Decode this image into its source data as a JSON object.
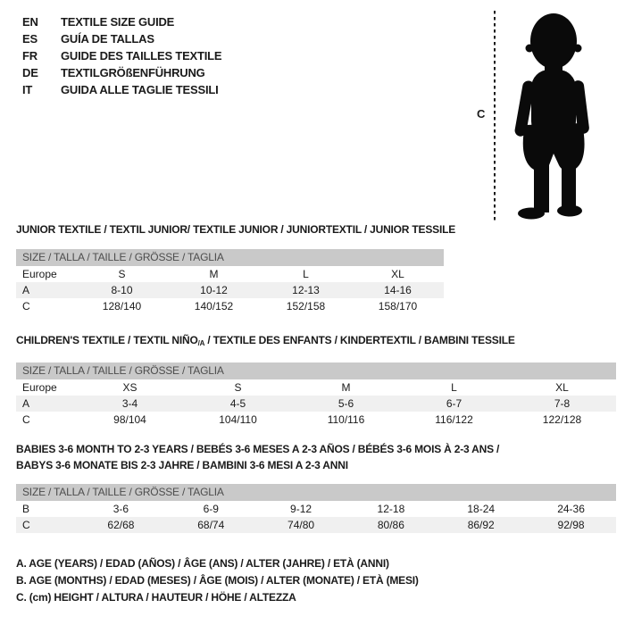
{
  "header": {
    "languages": [
      {
        "code": "EN",
        "title": "TEXTILE SIZE GUIDE"
      },
      {
        "code": "ES",
        "title": "GUÍA DE TALLAS"
      },
      {
        "code": "FR",
        "title": "GUIDE DES TAILLES TEXTILE"
      },
      {
        "code": "DE",
        "title": "TEXTILGRÖßENFÜHRUNG"
      },
      {
        "code": "IT",
        "title": "GUIDA ALLE TAGLIE TESSILI"
      }
    ],
    "figure": {
      "icon": "toddler-silhouette-icon",
      "measure_label": "C"
    }
  },
  "sections": [
    {
      "title_lines": [
        [
          {
            "t": "JUNIOR TEXTILE / TEXTIL JUNIOR/ TEXTILE JUNIOR / JUNIORTEXTIL / JUNIOR TESSILE"
          }
        ]
      ],
      "table": {
        "header": "SIZE / TALLA / TAILLE / GRÖSSE / TAGLIA",
        "rows": [
          {
            "label": "Europe",
            "values": [
              "S",
              "M",
              "L",
              "XL"
            ],
            "shaded": false
          },
          {
            "label": "A",
            "values": [
              "8-10",
              "10-12",
              "12-13",
              "14-16"
            ],
            "shaded": true
          },
          {
            "label": "C",
            "values": [
              "128/140",
              "140/152",
              "152/158",
              "158/170"
            ],
            "shaded": false
          }
        ]
      }
    },
    {
      "title_lines": [
        [
          {
            "t": "CHILDREN'S TEXTILE / TEXTIL NIÑO"
          },
          {
            "t": "/A",
            "sub": true
          },
          {
            "t": " / TEXTILE DES ENFANTS / KINDERTEXTIL / BAMBINI TESSILE"
          }
        ]
      ],
      "table": {
        "header": "SIZE / TALLA / TAILLE / GRÖSSE / TAGLIA",
        "rows": [
          {
            "label": "Europe",
            "values": [
              "XS",
              "S",
              "M",
              "L",
              "XL"
            ],
            "shaded": false
          },
          {
            "label": "A",
            "values": [
              "3-4",
              "4-5",
              "5-6",
              "6-7",
              "7-8"
            ],
            "shaded": true
          },
          {
            "label": "C",
            "values": [
              "98/104",
              "104/110",
              "110/116",
              "116/122",
              "122/128"
            ],
            "shaded": false
          }
        ]
      }
    },
    {
      "title_lines": [
        [
          {
            "t": "BABIES 3-6 MONTH TO 2-3 YEARS / BEBÉS 3-6 MESES A 2-3 AÑOS / BÉBÉS 3-6 MOIS À 2-3 ANS /"
          }
        ],
        [
          {
            "t": "BABYS 3-6 MONATE BIS 2-3 JAHRE / BAMBINI 3-6 MESI A 2-3 ANNI"
          }
        ]
      ],
      "table": {
        "header": "SIZE / TALLA / TAILLE / GRÖSSE / TAGLIA",
        "rows": [
          {
            "label": "B",
            "values": [
              "3-6",
              "6-9",
              "9-12",
              "12-18",
              "18-24",
              "24-36"
            ],
            "shaded": false
          },
          {
            "label": "C",
            "values": [
              "62/68",
              "68/74",
              "74/80",
              "80/86",
              "86/92",
              "92/98"
            ],
            "shaded": true
          }
        ]
      }
    }
  ],
  "footnotes": [
    "A. AGE (YEARS) / EDAD (AÑOS) / ÂGE (ANS) / ALTER (JAHRE) / ETÀ (ANNI)",
    "B. AGE (MONTHS) / EDAD (MESES) / ÂGE (MOIS) / ALTER (MONATE) / ETÀ (MESI)",
    "C. (cm) HEIGHT / ALTURA / HAUTEUR / HÖHE / ALTEZZA"
  ],
  "colors": {
    "background": "#ffffff",
    "text": "#1a1a1a",
    "header_bar_bg": "#c9c9c9",
    "header_bar_text": "#4d4d4d",
    "shaded_row_bg": "#f0f0f0",
    "silhouette": "#0a0a0a"
  }
}
